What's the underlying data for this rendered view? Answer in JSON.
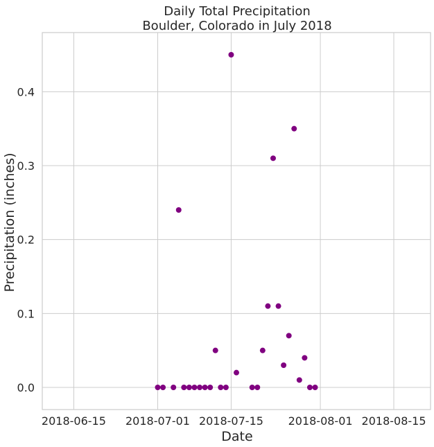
{
  "chart_data": {
    "type": "scatter",
    "title": "Daily Total Precipitation",
    "subtitle": "Boulder, Colorado in July 2018",
    "xlabel": "Date",
    "ylabel": "Precipitation (inches)",
    "x_axis_type": "date",
    "xlim": [
      "2018-06-09",
      "2018-08-22"
    ],
    "ylim": [
      -0.03,
      0.48
    ],
    "x_ticks": [
      "2018-06-15",
      "2018-07-01",
      "2018-07-15",
      "2018-08-01",
      "2018-08-15"
    ],
    "y_ticks": [
      0.0,
      0.1,
      0.2,
      0.3,
      0.4
    ],
    "y_tick_labels": [
      "0.0",
      "0.1",
      "0.2",
      "0.3",
      "0.4"
    ],
    "grid": true,
    "marker_color": "#800080",
    "points": [
      {
        "x": "2018-07-01",
        "y": 0.0
      },
      {
        "x": "2018-07-02",
        "y": 0.0
      },
      {
        "x": "2018-07-04",
        "y": 0.0
      },
      {
        "x": "2018-07-05",
        "y": 0.24
      },
      {
        "x": "2018-07-06",
        "y": 0.0
      },
      {
        "x": "2018-07-07",
        "y": 0.0
      },
      {
        "x": "2018-07-08",
        "y": 0.0
      },
      {
        "x": "2018-07-09",
        "y": 0.0
      },
      {
        "x": "2018-07-10",
        "y": 0.0
      },
      {
        "x": "2018-07-11",
        "y": 0.0
      },
      {
        "x": "2018-07-12",
        "y": 0.05
      },
      {
        "x": "2018-07-13",
        "y": 0.0
      },
      {
        "x": "2018-07-14",
        "y": 0.0
      },
      {
        "x": "2018-07-15",
        "y": 0.45
      },
      {
        "x": "2018-07-16",
        "y": 0.02
      },
      {
        "x": "2018-07-19",
        "y": 0.0
      },
      {
        "x": "2018-07-20",
        "y": 0.0
      },
      {
        "x": "2018-07-21",
        "y": 0.05
      },
      {
        "x": "2018-07-22",
        "y": 0.11
      },
      {
        "x": "2018-07-23",
        "y": 0.31
      },
      {
        "x": "2018-07-24",
        "y": 0.11
      },
      {
        "x": "2018-07-25",
        "y": 0.03
      },
      {
        "x": "2018-07-26",
        "y": 0.07
      },
      {
        "x": "2018-07-27",
        "y": 0.35
      },
      {
        "x": "2018-07-28",
        "y": 0.01
      },
      {
        "x": "2018-07-29",
        "y": 0.04
      },
      {
        "x": "2018-07-30",
        "y": 0.0
      },
      {
        "x": "2018-07-31",
        "y": 0.0
      }
    ]
  }
}
